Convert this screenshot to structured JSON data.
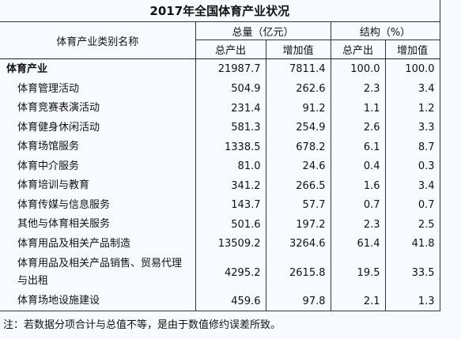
{
  "title": "2017年全国体育产业状况",
  "table": {
    "header": {
      "category": "体育产业类别名称",
      "total_group": "总量（亿元）",
      "structure_group": "结构（%）",
      "columns": [
        "总产出",
        "增加值",
        "总产出",
        "增加值"
      ]
    },
    "rows": [
      [
        "体育产业",
        "21987.7",
        "7811.4",
        "100.0",
        "100.0"
      ],
      [
        "体育管理活动",
        "504.9",
        "262.6",
        "2.3",
        "3.4"
      ],
      [
        "体育竞赛表演活动",
        "231.4",
        "91.2",
        "1.1",
        "1.2"
      ],
      [
        "体育健身休闲活动",
        "581.3",
        "254.9",
        "2.6",
        "3.3"
      ],
      [
        "体育场馆服务",
        "1338.5",
        "678.2",
        "6.1",
        "8.7"
      ],
      [
        "体育中介服务",
        "81.0",
        "24.6",
        "0.4",
        "0.3"
      ],
      [
        "体育培训与教育",
        "341.2",
        "266.5",
        "1.6",
        "3.4"
      ],
      [
        "体育传媒与信息服务",
        "143.7",
        "57.7",
        "0.7",
        "0.7"
      ],
      [
        "其他与体育相关服务",
        "501.6",
        "197.2",
        "2.3",
        "2.5"
      ],
      [
        "体育用品及相关产品制造",
        "13509.2",
        "3264.6",
        "61.4",
        "41.8"
      ],
      [
        "体育用品及相关产品销售、贸易代理与出租",
        "4295.2",
        "2615.8",
        "19.5",
        "33.5"
      ],
      [
        "体育场地设施建设",
        "459.6",
        "97.8",
        "2.1",
        "1.3"
      ]
    ]
  },
  "note": "注：若数据分项合计与总值不等，是由于数值修约误差所致。"
}
